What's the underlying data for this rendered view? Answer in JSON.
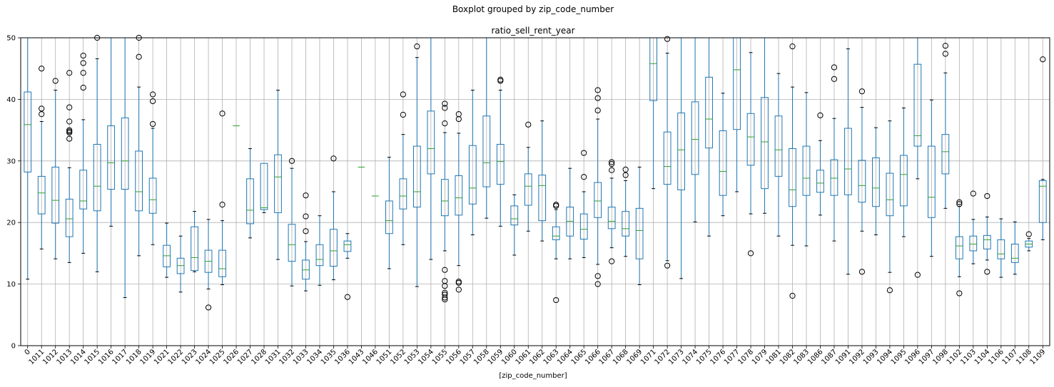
{
  "chart_data": {
    "type": "box",
    "suptitle": "Boxplot grouped by zip_code_number",
    "title": "ratio_sell_rent_year",
    "xlabel": "[zip_code_number]",
    "ylabel": "",
    "ylim": [
      0,
      50
    ],
    "yticks": [
      0,
      10,
      20,
      30,
      40,
      50
    ],
    "grid": true,
    "colors": {
      "box": "#1f77b4",
      "median": "#2ca02c",
      "flier": "#000000",
      "grid": "#b0b0b0"
    },
    "categories": [
      "0",
      "1011",
      "1012",
      "1013",
      "1014",
      "1015",
      "1016",
      "1017",
      "1018",
      "1019",
      "1021",
      "1022",
      "1023",
      "1024",
      "1025",
      "1026",
      "1027",
      "1028",
      "1031",
      "1032",
      "1033",
      "1034",
      "1035",
      "1036",
      "1043",
      "1046",
      "1051",
      "1052",
      "1053",
      "1054",
      "1055",
      "1056",
      "1057",
      "1058",
      "1059",
      "1060",
      "1061",
      "1062",
      "1063",
      "1064",
      "1065",
      "1066",
      "1067",
      "1068",
      "1069",
      "1071",
      "1072",
      "1073",
      "1074",
      "1075",
      "1076",
      "1077",
      "1078",
      "1079",
      "1081",
      "1082",
      "1083",
      "1086",
      "1087",
      "1091",
      "1092",
      "1093",
      "1094",
      "1095",
      "1096",
      "1097",
      "1098",
      "1102",
      "1103",
      "1104",
      "1106",
      "1107",
      "1108",
      "1109"
    ],
    "boxes": [
      {
        "min": 10.8,
        "q1": 28.2,
        "median": 35.9,
        "q3": 41.2,
        "max": 55,
        "fliers": []
      },
      {
        "min": 15.7,
        "q1": 21.4,
        "median": 24.8,
        "q3": 27.5,
        "max": 36.4,
        "fliers": [
          37.6,
          38.5,
          45
        ]
      },
      {
        "min": 14.1,
        "q1": 19.9,
        "median": 23.6,
        "q3": 29,
        "max": 41.5,
        "fliers": [
          43
        ]
      },
      {
        "min": 13.5,
        "q1": 17.7,
        "median": 20.6,
        "q3": 23.8,
        "max": 28.9,
        "fliers": [
          33.6,
          34.6,
          34.8,
          35,
          36.4,
          38.7,
          44.3
        ]
      },
      {
        "min": 15,
        "q1": 22.2,
        "median": 23.5,
        "q3": 28.5,
        "max": 36.7,
        "fliers": [
          41.9,
          44.3,
          45.9,
          47.1
        ]
      },
      {
        "min": 12,
        "q1": 21.9,
        "median": 25.9,
        "q3": 32.7,
        "max": 46.6,
        "fliers": [
          50
        ]
      },
      {
        "min": 19.4,
        "q1": 25.4,
        "median": 29.7,
        "q3": 35.7,
        "max": 55,
        "fliers": []
      },
      {
        "min": 7.8,
        "q1": 25.4,
        "median": 30,
        "q3": 37,
        "max": 55,
        "fliers": []
      },
      {
        "min": 14.6,
        "q1": 21.9,
        "median": 25,
        "q3": 31.6,
        "max": 42,
        "fliers": [
          46.9,
          50
        ]
      },
      {
        "min": 16.4,
        "q1": 21.5,
        "median": 23.7,
        "q3": 27.2,
        "max": 35.3,
        "fliers": [
          36,
          39.7,
          40.8
        ]
      },
      {
        "min": 11.1,
        "q1": 12.8,
        "median": 14.6,
        "q3": 16.3,
        "max": 19.9,
        "fliers": []
      },
      {
        "min": 8.7,
        "q1": 11.7,
        "median": 13,
        "q3": 14.2,
        "max": 17.8,
        "fliers": []
      },
      {
        "min": 12,
        "q1": 12.2,
        "median": 14.3,
        "q3": 19.3,
        "max": 21.8,
        "fliers": []
      },
      {
        "min": 9.2,
        "q1": 11.9,
        "median": 13.7,
        "q3": 15.5,
        "max": 20.5,
        "fliers": [
          6.2
        ]
      },
      {
        "min": 9.9,
        "q1": 11.2,
        "median": 12.5,
        "q3": 15.5,
        "max": 20.3,
        "fliers": [
          22.9,
          37.7
        ]
      },
      {
        "min": 35.7,
        "q1": 35.7,
        "median": 35.7,
        "q3": 35.7,
        "max": 35.7,
        "fliers": []
      },
      {
        "min": 17.5,
        "q1": 19.8,
        "median": 22,
        "q3": 27.1,
        "max": 32,
        "fliers": []
      },
      {
        "min": 21.6,
        "q1": 22.1,
        "median": 22.4,
        "q3": 29.6,
        "max": 29.6,
        "fliers": []
      },
      {
        "min": 14,
        "q1": 21.6,
        "median": 27.4,
        "q3": 31,
        "max": 41.5,
        "fliers": []
      },
      {
        "min": 9.7,
        "q1": 13.7,
        "median": 16.4,
        "q3": 19.7,
        "max": 28.8,
        "fliers": [
          30
        ]
      },
      {
        "min": 8.9,
        "q1": 10.8,
        "median": 12.3,
        "q3": 13.9,
        "max": 16.9,
        "fliers": [
          18.6,
          21,
          24.4
        ]
      },
      {
        "min": 9.8,
        "q1": 13,
        "median": 14,
        "q3": 16.4,
        "max": 21.1,
        "fliers": []
      },
      {
        "min": 10.7,
        "q1": 12.9,
        "median": 15.4,
        "q3": 18.9,
        "max": 25,
        "fliers": [
          30.4
        ]
      },
      {
        "min": 14.2,
        "q1": 15.3,
        "median": 16.4,
        "q3": 17,
        "max": 18.2,
        "fliers": [
          7.9
        ]
      },
      {
        "min": 29,
        "q1": 29,
        "median": 29,
        "q3": 29,
        "max": 29,
        "fliers": []
      },
      {
        "min": 24.3,
        "q1": 24.3,
        "median": 24.3,
        "q3": 24.3,
        "max": 24.3,
        "fliers": []
      },
      {
        "min": 12.5,
        "q1": 18.2,
        "median": 20.3,
        "q3": 23.5,
        "max": 30.6,
        "fliers": []
      },
      {
        "min": 16.4,
        "q1": 22.2,
        "median": 24.3,
        "q3": 27.1,
        "max": 34.3,
        "fliers": [
          37.5,
          40.8
        ]
      },
      {
        "min": 9.6,
        "q1": 22.5,
        "median": 25,
        "q3": 32.4,
        "max": 46.8,
        "fliers": [
          48.6
        ]
      },
      {
        "min": 14,
        "q1": 27.9,
        "median": 32,
        "q3": 38.1,
        "max": 55,
        "fliers": []
      },
      {
        "min": 15.4,
        "q1": 21.1,
        "median": 23.5,
        "q3": 27,
        "max": 34.6,
        "fliers": [
          7.5,
          7.8,
          8.3,
          8.6,
          9.7,
          10.5,
          12.3,
          36.1,
          38.6,
          39.3
        ]
      },
      {
        "min": 13,
        "q1": 21.2,
        "median": 24,
        "q3": 27.6,
        "max": 34.5,
        "fliers": [
          9.1,
          10.2,
          10.4,
          36.8,
          37.6
        ]
      },
      {
        "min": 18,
        "q1": 23,
        "median": 25.6,
        "q3": 32.5,
        "max": 41.5,
        "fliers": []
      },
      {
        "min": 20.7,
        "q1": 25.8,
        "median": 29.7,
        "q3": 37.3,
        "max": 55,
        "fliers": []
      },
      {
        "min": 19.4,
        "q1": 26.2,
        "median": 29.9,
        "q3": 32.7,
        "max": 41.5,
        "fliers": [
          43,
          43.2
        ]
      },
      {
        "min": 14.7,
        "q1": 19.6,
        "median": 20.6,
        "q3": 22.7,
        "max": 24.5,
        "fliers": []
      },
      {
        "min": 18.6,
        "q1": 22.8,
        "median": 25.9,
        "q3": 27.9,
        "max": 32.2,
        "fliers": [
          35.9
        ]
      },
      {
        "min": 17,
        "q1": 20.3,
        "median": 26,
        "q3": 27.7,
        "max": 36.5,
        "fliers": []
      },
      {
        "min": 14.1,
        "q1": 17.2,
        "median": 17.8,
        "q3": 19.3,
        "max": 22.1,
        "fliers": [
          7.4,
          22.7,
          22.9
        ]
      },
      {
        "min": 14.1,
        "q1": 17.8,
        "median": 20.2,
        "q3": 22.5,
        "max": 28.8,
        "fliers": []
      },
      {
        "min": 14.3,
        "q1": 17.3,
        "median": 18.9,
        "q3": 21.4,
        "max": 25,
        "fliers": [
          27.4,
          31.3
        ]
      },
      {
        "min": 13.2,
        "q1": 20.8,
        "median": 23.5,
        "q3": 26.5,
        "max": 36.8,
        "fliers": [
          10,
          11.3,
          38.2,
          40.2,
          41.5
        ]
      },
      {
        "min": 15.9,
        "q1": 19,
        "median": 20.2,
        "q3": 22.5,
        "max": 27.2,
        "fliers": [
          13.7,
          28.5,
          29.5,
          29.8
        ]
      },
      {
        "min": 14.5,
        "q1": 17.8,
        "median": 19,
        "q3": 21.8,
        "max": 26.8,
        "fliers": [
          27.7,
          28.6
        ]
      },
      {
        "min": 9.9,
        "q1": 14.1,
        "median": 18.7,
        "q3": 22.3,
        "max": 29,
        "fliers": []
      },
      {
        "min": 25.5,
        "q1": 39.8,
        "median": 45.8,
        "q3": 55,
        "max": 55,
        "fliers": []
      },
      {
        "min": 13.8,
        "q1": 26.2,
        "median": 29.1,
        "q3": 34.7,
        "max": 47.5,
        "fliers": [
          13,
          49.8
        ]
      },
      {
        "min": 10.9,
        "q1": 25.3,
        "median": 31.8,
        "q3": 37.8,
        "max": 55,
        "fliers": []
      },
      {
        "min": 20.1,
        "q1": 27.8,
        "median": 33.5,
        "q3": 39.6,
        "max": 55,
        "fliers": []
      },
      {
        "min": 17.8,
        "q1": 32.1,
        "median": 36.8,
        "q3": 43.6,
        "max": 55,
        "fliers": []
      },
      {
        "min": 21.1,
        "q1": 24.4,
        "median": 28.3,
        "q3": 34.9,
        "max": 41,
        "fliers": []
      },
      {
        "min": 25,
        "q1": 35.1,
        "median": 44.8,
        "q3": 55,
        "max": 55,
        "fliers": []
      },
      {
        "min": 21.4,
        "q1": 29.3,
        "median": 33.9,
        "q3": 37.7,
        "max": 47.6,
        "fliers": [
          15
        ]
      },
      {
        "min": 21.5,
        "q1": 25.5,
        "median": 33.1,
        "q3": 40.3,
        "max": 55,
        "fliers": []
      },
      {
        "min": 17.8,
        "q1": 27.5,
        "median": 31.8,
        "q3": 37.3,
        "max": 44.2,
        "fliers": []
      },
      {
        "min": 16.3,
        "q1": 22.6,
        "median": 25.3,
        "q3": 32,
        "max": 42,
        "fliers": [
          8.1,
          48.6
        ]
      },
      {
        "min": 16.2,
        "q1": 24.4,
        "median": 27.2,
        "q3": 32.4,
        "max": 41.1,
        "fliers": []
      },
      {
        "min": 21.2,
        "q1": 24.9,
        "median": 26.4,
        "q3": 28.5,
        "max": 33.3,
        "fliers": [
          37.4
        ]
      },
      {
        "min": 17,
        "q1": 24.4,
        "median": 27.2,
        "q3": 30.2,
        "max": 36.9,
        "fliers": [
          43.3,
          45.2
        ]
      },
      {
        "min": 11.6,
        "q1": 24.5,
        "median": 28.7,
        "q3": 35.3,
        "max": 48.2,
        "fliers": []
      },
      {
        "min": 18.6,
        "q1": 23.3,
        "median": 26,
        "q3": 30.1,
        "max": 38.7,
        "fliers": [
          12,
          41.3
        ]
      },
      {
        "min": 18,
        "q1": 22.6,
        "median": 25.6,
        "q3": 30.5,
        "max": 35.4,
        "fliers": []
      },
      {
        "min": 11.9,
        "q1": 21.1,
        "median": 23.7,
        "q3": 28,
        "max": 36.5,
        "fliers": [
          9
        ]
      },
      {
        "min": 17.7,
        "q1": 22.7,
        "median": 27.8,
        "q3": 30.9,
        "max": 38.6,
        "fliers": []
      },
      {
        "min": 27.1,
        "q1": 32.4,
        "median": 34.1,
        "q3": 45.7,
        "max": 55,
        "fliers": [
          11.5
        ]
      },
      {
        "min": 14.5,
        "q1": 20.8,
        "median": 24.1,
        "q3": 32.4,
        "max": 39.9,
        "fliers": []
      },
      {
        "min": 22.3,
        "q1": 27.9,
        "median": 31.5,
        "q3": 34.3,
        "max": 44.3,
        "fliers": [
          47.4,
          48.7
        ]
      },
      {
        "min": 11.2,
        "q1": 14.1,
        "median": 16.2,
        "q3": 17.7,
        "max": 22.6,
        "fliers": [
          8.5,
          23,
          23.3
        ]
      },
      {
        "min": 13.3,
        "q1": 15.4,
        "median": 16.5,
        "q3": 17.8,
        "max": 20.5,
        "fliers": [
          24.7
        ]
      },
      {
        "min": 13.9,
        "q1": 15.7,
        "median": 17.2,
        "q3": 17.9,
        "max": 20.9,
        "fliers": [
          12,
          24.3
        ]
      },
      {
        "min": 11.1,
        "q1": 14.1,
        "median": 14.9,
        "q3": 17.2,
        "max": 20.6,
        "fliers": []
      },
      {
        "min": 11.6,
        "q1": 13.5,
        "median": 14.2,
        "q3": 16.5,
        "max": 20.1,
        "fliers": []
      },
      {
        "min": 15.4,
        "q1": 16,
        "median": 16.5,
        "q3": 17,
        "max": 17.4,
        "fliers": [
          18.1
        ]
      },
      {
        "min": 17.2,
        "q1": 20,
        "median": 25.9,
        "q3": 26.8,
        "max": 27,
        "fliers": [
          46.5
        ]
      }
    ]
  }
}
